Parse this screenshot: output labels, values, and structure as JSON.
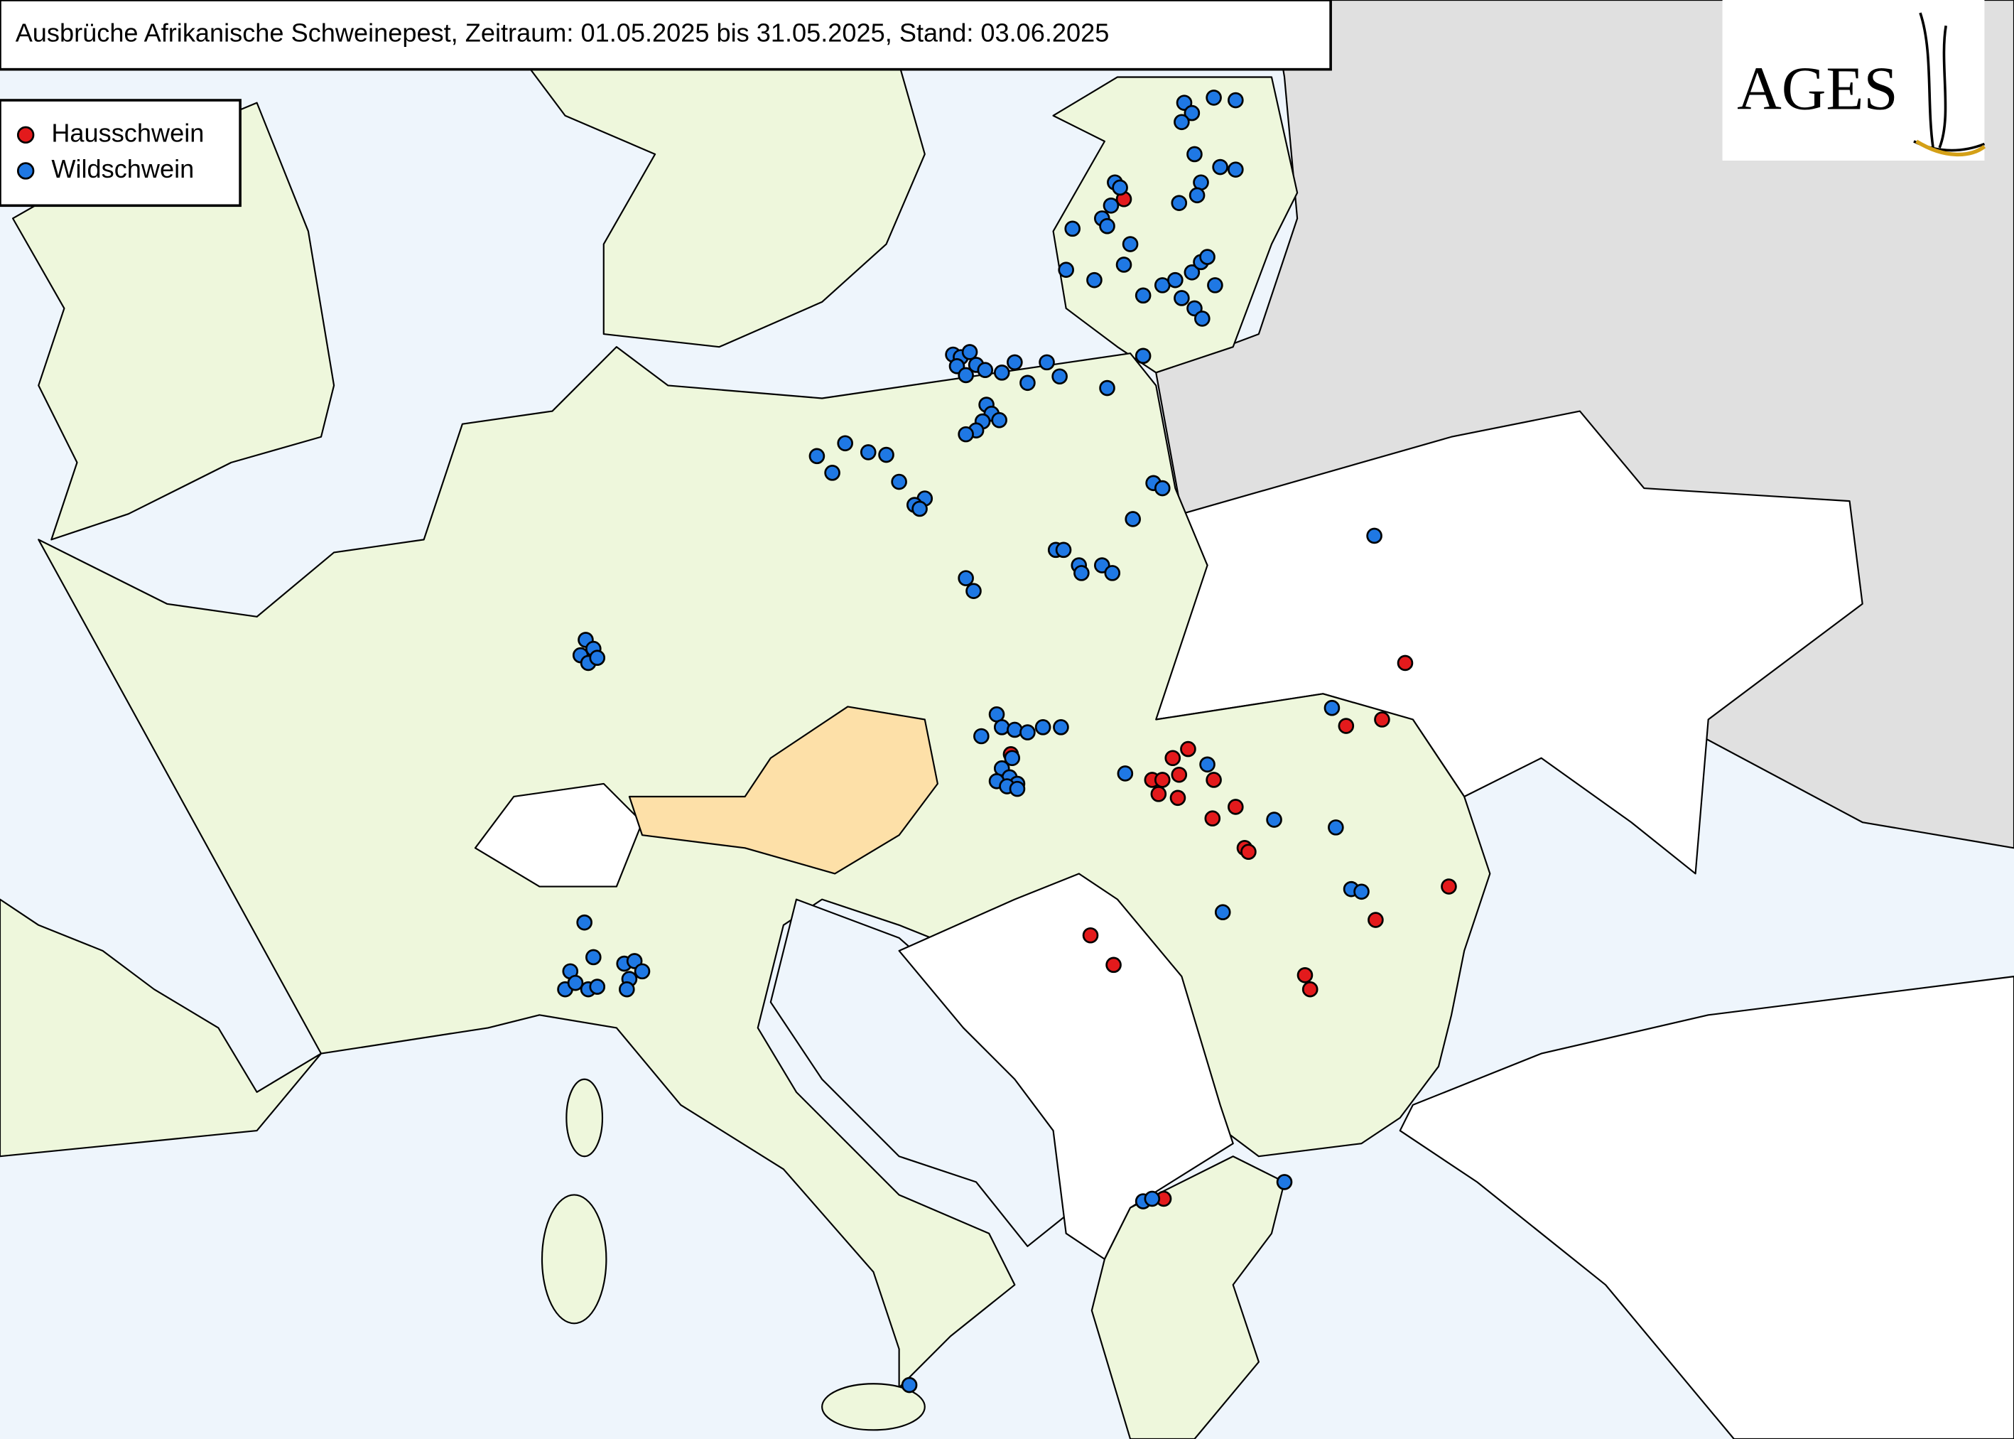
{
  "header": {
    "title": "Ausbrüche Afrikanische Schweinepest, Zeitraum: 01.05.2025 bis 31.05.2025, Stand: 03.06.2025"
  },
  "legend": {
    "items": [
      {
        "label": "Hausschwein",
        "color": "#e31a1c"
      },
      {
        "label": "Wildschwein",
        "color": "#1f78e4"
      }
    ]
  },
  "logo": {
    "text": "AGES"
  }
}
